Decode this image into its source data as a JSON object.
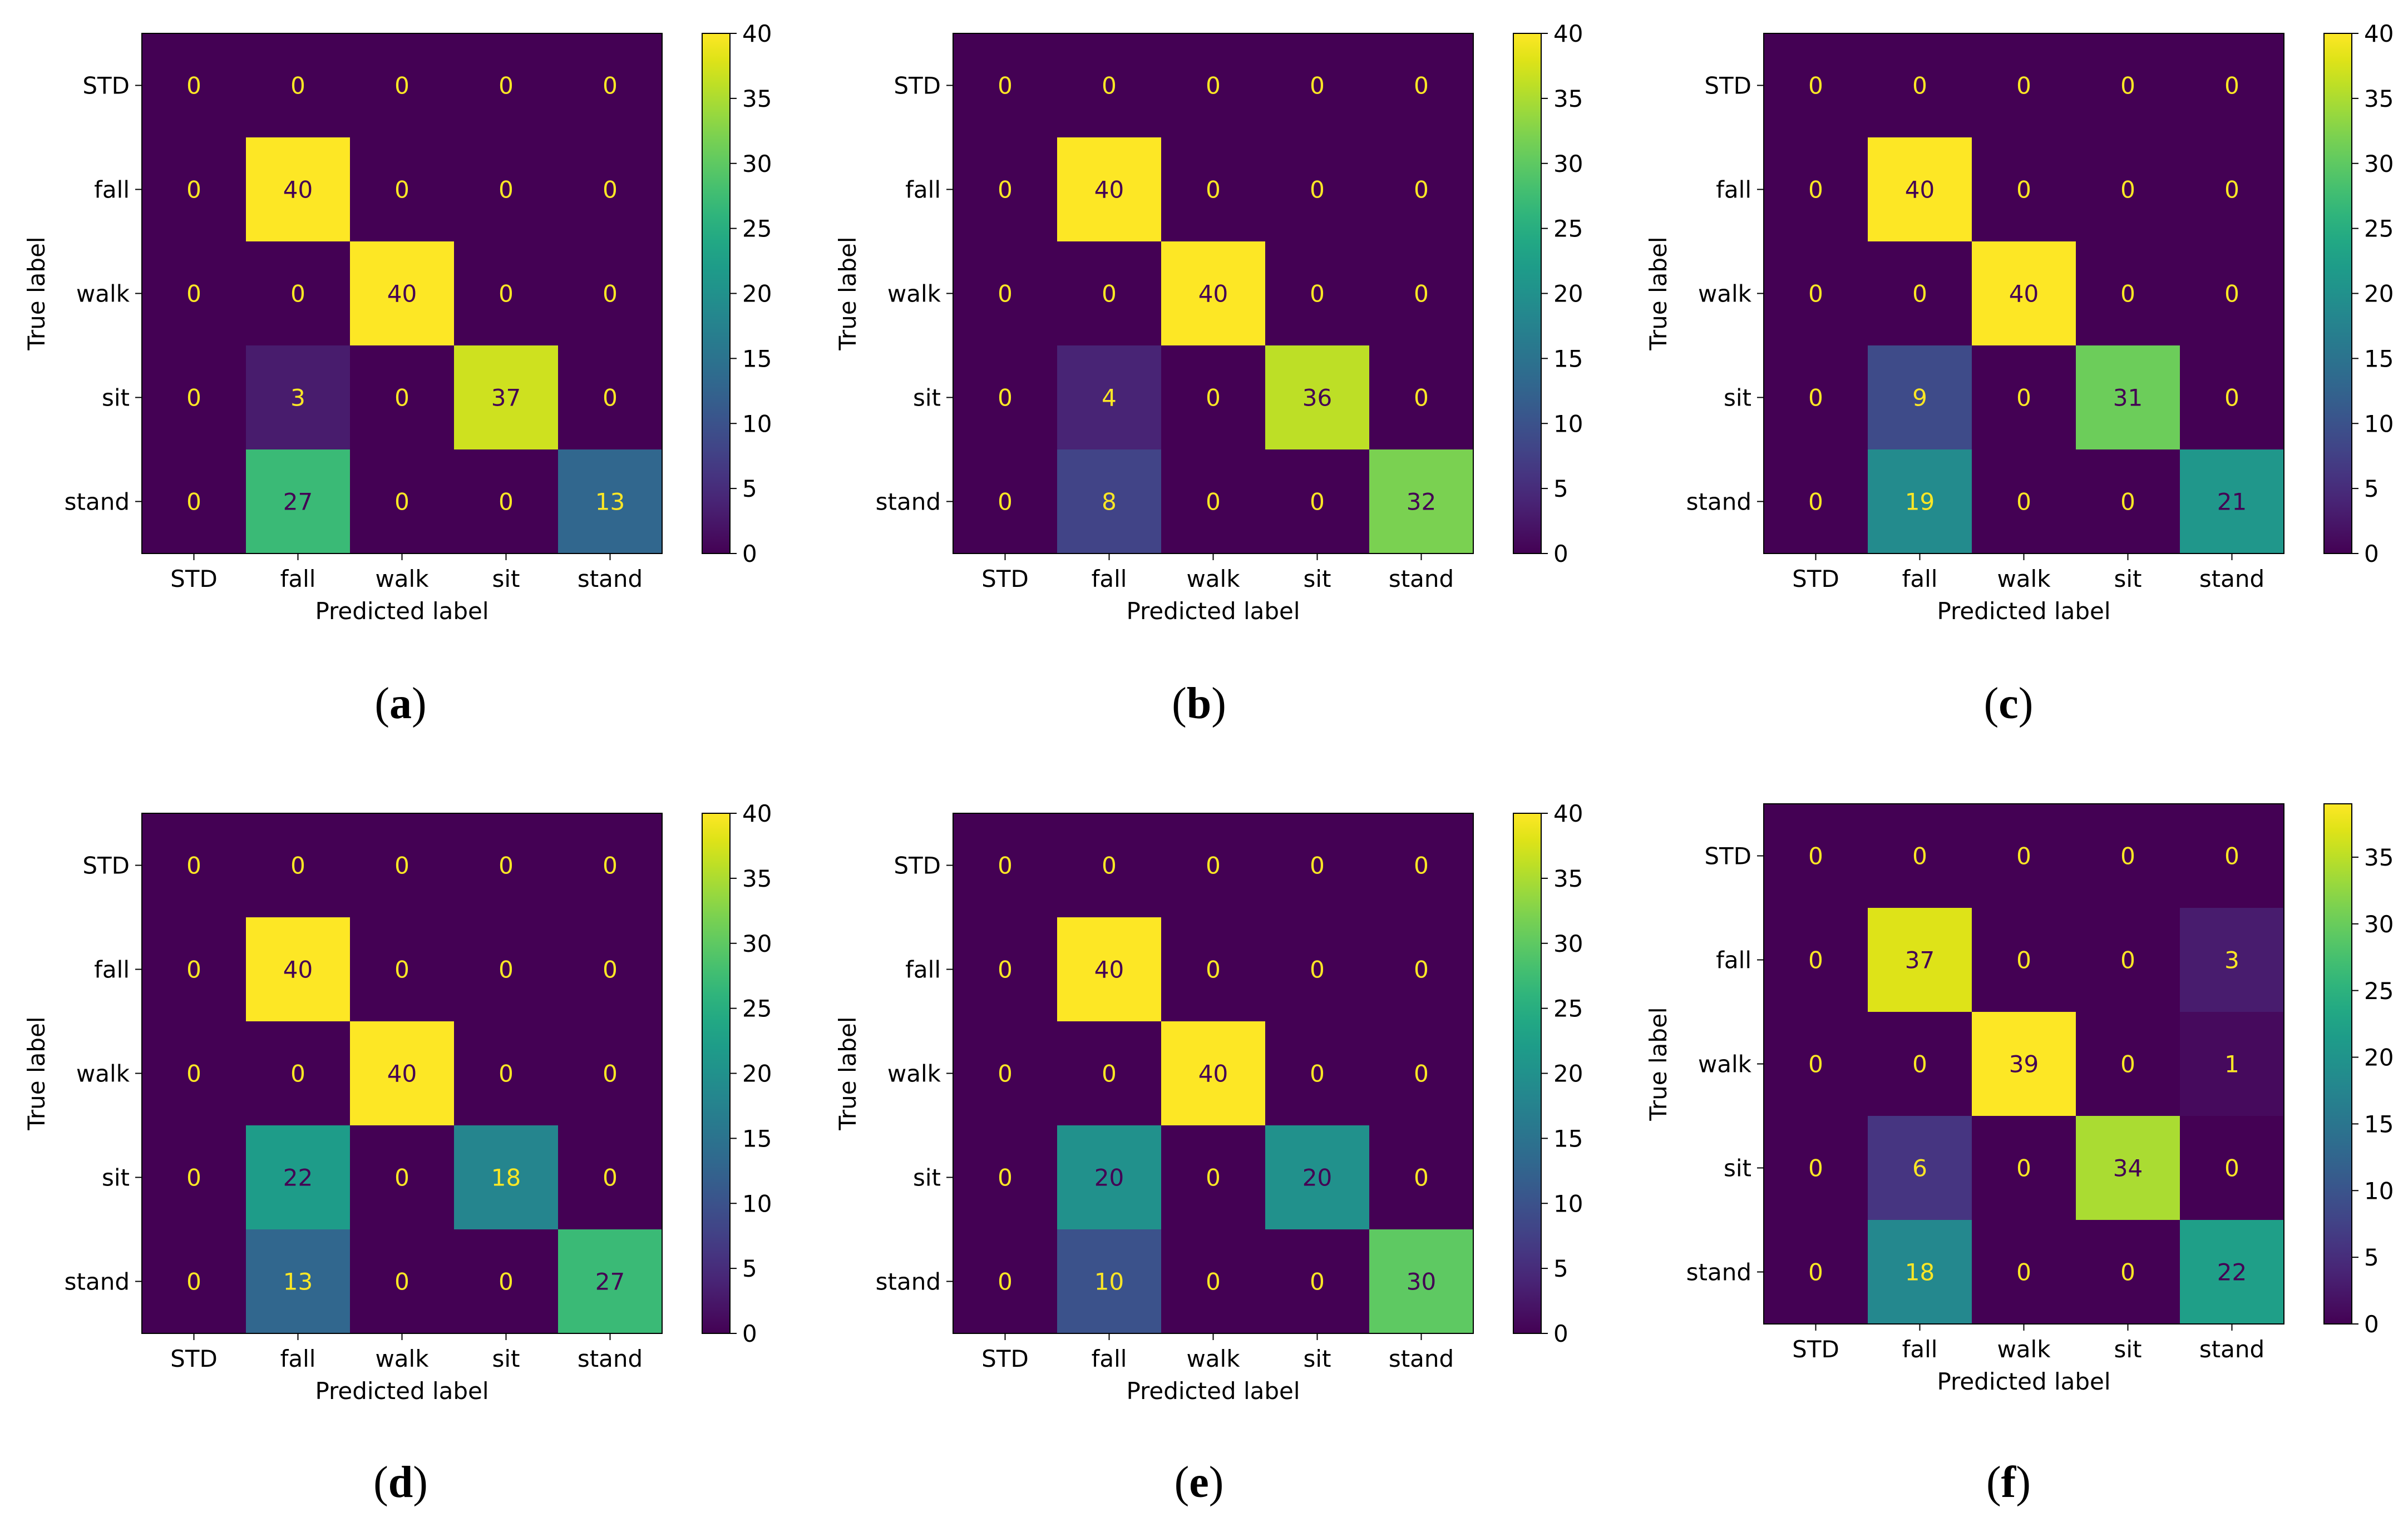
{
  "chart_data": [
    {
      "type": "heatmap",
      "panel_label": "a",
      "title": "",
      "xlabel": "Predicted label",
      "ylabel": "True label",
      "x_categories": [
        "STD",
        "fall",
        "walk",
        "sit",
        "stand"
      ],
      "y_categories": [
        "STD",
        "fall",
        "walk",
        "sit",
        "stand"
      ],
      "values": [
        [
          0,
          0,
          0,
          0,
          0
        ],
        [
          0,
          40,
          0,
          0,
          0
        ],
        [
          0,
          0,
          40,
          0,
          0
        ],
        [
          0,
          3,
          0,
          37,
          0
        ],
        [
          0,
          27,
          0,
          0,
          13
        ]
      ],
      "colorbar": {
        "min": 0,
        "max": 40,
        "ticks": [
          0,
          5,
          10,
          15,
          20,
          25,
          30,
          35,
          40
        ]
      },
      "colormap": "viridis"
    },
    {
      "type": "heatmap",
      "panel_label": "b",
      "title": "",
      "xlabel": "Predicted label",
      "ylabel": "True label",
      "x_categories": [
        "STD",
        "fall",
        "walk",
        "sit",
        "stand"
      ],
      "y_categories": [
        "STD",
        "fall",
        "walk",
        "sit",
        "stand"
      ],
      "values": [
        [
          0,
          0,
          0,
          0,
          0
        ],
        [
          0,
          40,
          0,
          0,
          0
        ],
        [
          0,
          0,
          40,
          0,
          0
        ],
        [
          0,
          4,
          0,
          36,
          0
        ],
        [
          0,
          8,
          0,
          0,
          32
        ]
      ],
      "colorbar": {
        "min": 0,
        "max": 40,
        "ticks": [
          0,
          5,
          10,
          15,
          20,
          25,
          30,
          35,
          40
        ]
      },
      "colormap": "viridis"
    },
    {
      "type": "heatmap",
      "panel_label": "c",
      "title": "",
      "xlabel": "Predicted label",
      "ylabel": "True label",
      "x_categories": [
        "STD",
        "fall",
        "walk",
        "sit",
        "stand"
      ],
      "y_categories": [
        "STD",
        "fall",
        "walk",
        "sit",
        "stand"
      ],
      "values": [
        [
          0,
          0,
          0,
          0,
          0
        ],
        [
          0,
          40,
          0,
          0,
          0
        ],
        [
          0,
          0,
          40,
          0,
          0
        ],
        [
          0,
          9,
          0,
          31,
          0
        ],
        [
          0,
          19,
          0,
          0,
          21
        ]
      ],
      "colorbar": {
        "min": 0,
        "max": 40,
        "ticks": [
          0,
          5,
          10,
          15,
          20,
          25,
          30,
          35,
          40
        ]
      },
      "colormap": "viridis"
    },
    {
      "type": "heatmap",
      "panel_label": "d",
      "title": "",
      "xlabel": "Predicted label",
      "ylabel": "True label",
      "x_categories": [
        "STD",
        "fall",
        "walk",
        "sit",
        "stand"
      ],
      "y_categories": [
        "STD",
        "fall",
        "walk",
        "sit",
        "stand"
      ],
      "values": [
        [
          0,
          0,
          0,
          0,
          0
        ],
        [
          0,
          40,
          0,
          0,
          0
        ],
        [
          0,
          0,
          40,
          0,
          0
        ],
        [
          0,
          22,
          0,
          18,
          0
        ],
        [
          0,
          13,
          0,
          0,
          27
        ]
      ],
      "colorbar": {
        "min": 0,
        "max": 40,
        "ticks": [
          0,
          5,
          10,
          15,
          20,
          25,
          30,
          35,
          40
        ]
      },
      "colormap": "viridis"
    },
    {
      "type": "heatmap",
      "panel_label": "e",
      "title": "",
      "xlabel": "Predicted label",
      "ylabel": "True label",
      "x_categories": [
        "STD",
        "fall",
        "walk",
        "sit",
        "stand"
      ],
      "y_categories": [
        "STD",
        "fall",
        "walk",
        "sit",
        "stand"
      ],
      "values": [
        [
          0,
          0,
          0,
          0,
          0
        ],
        [
          0,
          40,
          0,
          0,
          0
        ],
        [
          0,
          0,
          40,
          0,
          0
        ],
        [
          0,
          20,
          0,
          20,
          0
        ],
        [
          0,
          10,
          0,
          0,
          30
        ]
      ],
      "colorbar": {
        "min": 0,
        "max": 40,
        "ticks": [
          0,
          5,
          10,
          15,
          20,
          25,
          30,
          35,
          40
        ]
      },
      "colormap": "viridis"
    },
    {
      "type": "heatmap",
      "panel_label": "f",
      "title": "",
      "xlabel": "Predicted label",
      "ylabel": "True label",
      "x_categories": [
        "STD",
        "fall",
        "walk",
        "sit",
        "stand"
      ],
      "y_categories": [
        "STD",
        "fall",
        "walk",
        "sit",
        "stand"
      ],
      "values": [
        [
          0,
          0,
          0,
          0,
          0
        ],
        [
          0,
          37,
          0,
          0,
          3
        ],
        [
          0,
          0,
          39,
          0,
          1
        ],
        [
          0,
          6,
          0,
          34,
          0
        ],
        [
          0,
          18,
          0,
          0,
          22
        ]
      ],
      "colorbar": {
        "min": 0,
        "max": 39,
        "ticks": [
          0,
          5,
          10,
          15,
          20,
          25,
          30,
          35
        ]
      },
      "colormap": "viridis"
    }
  ]
}
